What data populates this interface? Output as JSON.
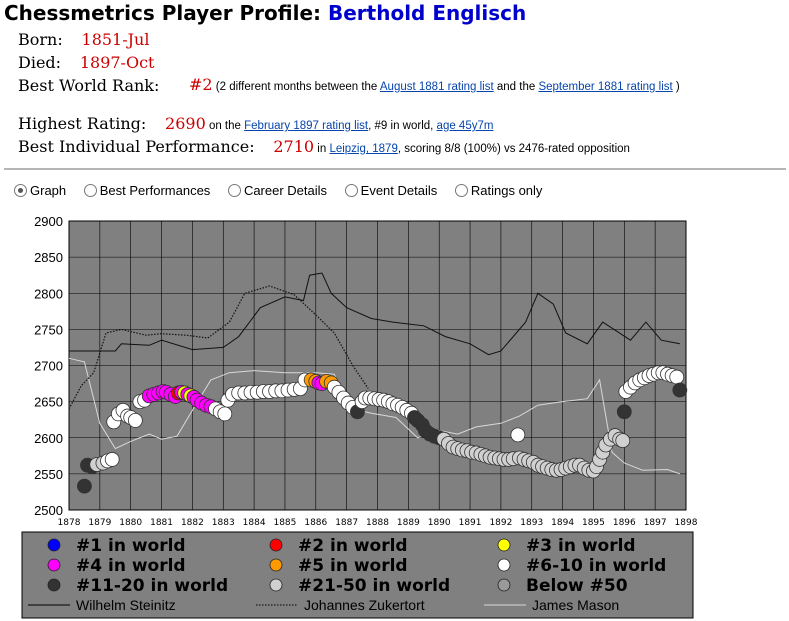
{
  "header": {
    "title_prefix": "Chessmetrics Player Profile: ",
    "player_name": "Berthold Englisch"
  },
  "info": {
    "born_label": "Born:",
    "born_value": "1851-Jul",
    "died_label": "Died:",
    "died_value": "1897-Oct",
    "rank_label": "Best World Rank:",
    "rank_value": "#2",
    "rank_text_1": "(2 different months between the ",
    "rank_link_1": "August 1881 rating list",
    "rank_text_2": " and the ",
    "rank_link_2": "September 1881 rating list",
    "rank_text_3": " )",
    "rating_label": "Highest Rating:",
    "rating_value": "2690",
    "rating_text_1": " on the ",
    "rating_link": "February 1897 rating list",
    "rating_text_2": ", #9 in world, ",
    "rating_age_link": "age 45y7m",
    "perf_label": "Best Individual Performance:",
    "perf_value": "2710",
    "perf_text_1": " in ",
    "perf_link": "Leipzig, 1879",
    "perf_text_2": ", scoring 8/8 (100%) vs 2476-rated opposition"
  },
  "tabs": [
    {
      "label": "Graph",
      "selected": true
    },
    {
      "label": "Best Performances",
      "selected": false
    },
    {
      "label": "Career Details",
      "selected": false
    },
    {
      "label": "Event Details",
      "selected": false
    },
    {
      "label": "Ratings only",
      "selected": false
    }
  ],
  "chart_data": {
    "type": "scatter",
    "ylim": [
      2500,
      2900
    ],
    "yticks": [
      2500,
      2550,
      2600,
      2650,
      2700,
      2750,
      2800,
      2850,
      2900
    ],
    "xlim": [
      1878,
      1898
    ],
    "xticks": [
      "1878",
      "1879",
      "1880",
      "1881",
      "1882",
      "1883",
      "1884",
      "1885",
      "1886",
      "1887",
      "1888",
      "1889",
      "1890",
      "1891",
      "1892",
      "1893",
      "1894",
      "1895",
      "1896",
      "1897",
      "1898"
    ],
    "grid": true,
    "legend_placement": "bottom",
    "legend": [
      {
        "label": "#1 in world",
        "color": "#0000ff",
        "kind": "dot"
      },
      {
        "label": "#2 in world",
        "color": "#ff0000",
        "kind": "dot"
      },
      {
        "label": "#3 in world",
        "color": "#ffff00",
        "kind": "dot"
      },
      {
        "label": "#4 in world",
        "color": "#ff00ff",
        "kind": "dot"
      },
      {
        "label": "#5 in world",
        "color": "#ff9900",
        "kind": "dot"
      },
      {
        "label": "#6-10 in world",
        "color": "#ffffff",
        "kind": "dot"
      },
      {
        "label": "#11-20 in world",
        "color": "#333333",
        "kind": "dot"
      },
      {
        "label": "#21-50 in world",
        "color": "#d0d0d0",
        "kind": "dot"
      },
      {
        "label": "Below #50",
        "color": "#9a9a9a",
        "kind": "dot"
      },
      {
        "label": "Wilhelm Steinitz",
        "color": "#000000",
        "kind": "solid"
      },
      {
        "label": "Johannes Zukertort",
        "color": "#000000",
        "kind": "dotted"
      },
      {
        "label": "James Mason",
        "color": "#d8d8d8",
        "kind": "solid"
      }
    ],
    "category_colors": {
      "r1": "#0000ff",
      "r2": "#ff0000",
      "r3": "#ffff00",
      "r4": "#ff00ff",
      "r5": "#ff9900",
      "r6": "#ffffff",
      "r11": "#333333",
      "r21": "#d0d0d0",
      "r50": "#9a9a9a"
    },
    "englisch_points": [
      [
        "1878.5",
        2533,
        "r11"
      ],
      [
        "1878.6",
        2562,
        "r11"
      ],
      [
        "1878.75",
        2560,
        "r11"
      ],
      [
        "1878.9",
        2563,
        "r21"
      ],
      [
        "1879.1",
        2565,
        "r21"
      ],
      [
        "1879.25",
        2568,
        "r6"
      ],
      [
        "1879.4",
        2570,
        "r6"
      ],
      [
        "1879.45",
        2622,
        "r6"
      ],
      [
        "1879.6",
        2633,
        "r6"
      ],
      [
        "1879.75",
        2638,
        "r6"
      ],
      [
        "1879.9",
        2630,
        "r6"
      ],
      [
        "1880.0",
        2628,
        "r6"
      ],
      [
        "1880.15",
        2624,
        "r6"
      ],
      [
        "1880.3",
        2650,
        "r6"
      ],
      [
        "1880.45",
        2652,
        "r6"
      ],
      [
        "1880.6",
        2658,
        "r4"
      ],
      [
        "1880.75",
        2660,
        "r4"
      ],
      [
        "1880.9",
        2662,
        "r4"
      ],
      [
        "1881.05",
        2664,
        "r4"
      ],
      [
        "1881.15",
        2663,
        "r4"
      ],
      [
        "1881.3",
        2660,
        "r4"
      ],
      [
        "1881.45",
        2657,
        "r4"
      ],
      [
        "1881.55",
        2662,
        "r2"
      ],
      [
        "1881.65",
        2663,
        "r4"
      ],
      [
        "1881.75",
        2662,
        "r3"
      ],
      [
        "1881.85",
        2660,
        "r4"
      ],
      [
        "1881.95",
        2658,
        "r3"
      ],
      [
        "1882.05",
        2656,
        "r4"
      ],
      [
        "1882.15",
        2652,
        "r4"
      ],
      [
        "1882.3",
        2648,
        "r4"
      ],
      [
        "1882.45",
        2645,
        "r4"
      ],
      [
        "1882.6",
        2643,
        "r4"
      ],
      [
        "1882.75",
        2640,
        "r6"
      ],
      [
        "1882.9",
        2636,
        "r6"
      ],
      [
        "1883.05",
        2633,
        "r6"
      ],
      [
        "1883.15",
        2652,
        "r6"
      ],
      [
        "1883.3",
        2660,
        "r6"
      ],
      [
        "1883.5",
        2662,
        "r6"
      ],
      [
        "1883.7",
        2662,
        "r6"
      ],
      [
        "1883.9",
        2663,
        "r6"
      ],
      [
        "1884.1",
        2663,
        "r6"
      ],
      [
        "1884.3",
        2664,
        "r6"
      ],
      [
        "1884.5",
        2664,
        "r6"
      ],
      [
        "1884.7",
        2665,
        "r6"
      ],
      [
        "1884.9",
        2665,
        "r6"
      ],
      [
        "1885.1",
        2666,
        "r6"
      ],
      [
        "1885.3",
        2667,
        "r6"
      ],
      [
        "1885.5",
        2668,
        "r6"
      ],
      [
        "1885.65",
        2680,
        "r6"
      ],
      [
        "1885.85",
        2680,
        "r5"
      ],
      [
        "1886.0",
        2678,
        "r5"
      ],
      [
        "1886.1",
        2676,
        "r4"
      ],
      [
        "1886.2",
        2675,
        "r4"
      ],
      [
        "1886.35",
        2678,
        "r5"
      ],
      [
        "1886.5",
        2676,
        "r5"
      ],
      [
        "1886.6",
        2670,
        "r6"
      ],
      [
        "1886.75",
        2663,
        "r6"
      ],
      [
        "1886.9",
        2655,
        "r6"
      ],
      [
        "1887.05",
        2648,
        "r6"
      ],
      [
        "1887.2",
        2642,
        "r6"
      ],
      [
        "1887.35",
        2636,
        "r11"
      ],
      [
        "1887.5",
        2650,
        "r6"
      ],
      [
        "1887.6",
        2655,
        "r6"
      ],
      [
        "1887.75",
        2655,
        "r6"
      ],
      [
        "1887.9",
        2654,
        "r6"
      ],
      [
        "1888.05",
        2653,
        "r6"
      ],
      [
        "1888.2",
        2652,
        "r6"
      ],
      [
        "1888.35",
        2650,
        "r6"
      ],
      [
        "1888.5",
        2647,
        "r6"
      ],
      [
        "1888.65",
        2645,
        "r6"
      ],
      [
        "1888.8",
        2642,
        "r6"
      ],
      [
        "1888.95",
        2638,
        "r6"
      ],
      [
        "1889.1",
        2634,
        "r6"
      ],
      [
        "1889.2",
        2628,
        "r11"
      ],
      [
        "1889.3",
        2624,
        "r11"
      ],
      [
        "1889.45",
        2618,
        "r11"
      ],
      [
        "1889.55",
        2610,
        "r11"
      ],
      [
        "1889.7",
        2605,
        "r11"
      ],
      [
        "1889.85",
        2602,
        "r11"
      ],
      [
        "1890.0",
        2600,
        "r11"
      ],
      [
        "1890.15",
        2598,
        "r21"
      ],
      [
        "1890.3",
        2592,
        "r21"
      ],
      [
        "1890.45",
        2587,
        "r21"
      ],
      [
        "1890.6",
        2585,
        "r21"
      ],
      [
        "1890.75",
        2583,
        "r21"
      ],
      [
        "1890.9",
        2582,
        "r21"
      ],
      [
        "1891.05",
        2580,
        "r21"
      ],
      [
        "1891.2",
        2579,
        "r21"
      ],
      [
        "1891.35",
        2577,
        "r21"
      ],
      [
        "1891.5",
        2575,
        "r21"
      ],
      [
        "1891.65",
        2573,
        "r21"
      ],
      [
        "1891.8",
        2572,
        "r21"
      ],
      [
        "1891.95",
        2571,
        "r21"
      ],
      [
        "1892.1",
        2570,
        "r21"
      ],
      [
        "1892.25",
        2570,
        "r21"
      ],
      [
        "1892.4",
        2571,
        "r21"
      ],
      [
        "1892.55",
        2604,
        "r6"
      ],
      [
        "1892.6",
        2572,
        "r21"
      ],
      [
        "1892.75",
        2570,
        "r21"
      ],
      [
        "1892.9",
        2568,
        "r21"
      ],
      [
        "1893.05",
        2566,
        "r21"
      ],
      [
        "1893.2",
        2562,
        "r21"
      ],
      [
        "1893.35",
        2560,
        "r21"
      ],
      [
        "1893.5",
        2558,
        "r21"
      ],
      [
        "1893.65",
        2556,
        "r21"
      ],
      [
        "1893.8",
        2555,
        "r21"
      ],
      [
        "1893.95",
        2556,
        "r21"
      ],
      [
        "1894.1",
        2558,
        "r21"
      ],
      [
        "1894.25",
        2560,
        "r21"
      ],
      [
        "1894.4",
        2562,
        "r21"
      ],
      [
        "1894.55",
        2562,
        "r21"
      ],
      [
        "1894.7",
        2558,
        "r21"
      ],
      [
        "1894.85",
        2555,
        "r21"
      ],
      [
        "1895.0",
        2554,
        "r21"
      ],
      [
        "1895.1",
        2560,
        "r21"
      ],
      [
        "1895.2",
        2570,
        "r21"
      ],
      [
        "1895.3",
        2580,
        "r21"
      ],
      [
        "1895.4",
        2590,
        "r21"
      ],
      [
        "1895.55",
        2598,
        "r21"
      ],
      [
        "1895.7",
        2603,
        "r21"
      ],
      [
        "1895.85",
        2598,
        "r21"
      ],
      [
        "1895.95",
        2596,
        "r21"
      ],
      [
        "1896.0",
        2636,
        "r11"
      ],
      [
        "1896.05",
        2664,
        "r6"
      ],
      [
        "1896.2",
        2670,
        "r6"
      ],
      [
        "1896.35",
        2676,
        "r6"
      ],
      [
        "1896.5",
        2680,
        "r6"
      ],
      [
        "1896.65",
        2683,
        "r6"
      ],
      [
        "1896.8",
        2686,
        "r6"
      ],
      [
        "1896.95",
        2688,
        "r6"
      ],
      [
        "1897.1",
        2690,
        "r6"
      ],
      [
        "1897.25",
        2690,
        "r6"
      ],
      [
        "1897.4",
        2688,
        "r6"
      ],
      [
        "1897.55",
        2686,
        "r6"
      ],
      [
        "1897.7",
        2684,
        "r6"
      ],
      [
        "1897.8",
        2666,
        "r11"
      ]
    ],
    "steinitz_line": [
      [
        "1878.0",
        2720
      ],
      [
        "1879.5",
        2720
      ],
      [
        "1879.7",
        2730
      ],
      [
        "1880.6",
        2728
      ],
      [
        "1881.0",
        2735
      ],
      [
        "1882.0",
        2722
      ],
      [
        "1883.0",
        2725
      ],
      [
        "1883.5",
        2740
      ],
      [
        "1884.2",
        2780
      ],
      [
        "1885.0",
        2795
      ],
      [
        "1885.6",
        2790
      ],
      [
        "1885.8",
        2825
      ],
      [
        "1886.2",
        2828
      ],
      [
        "1886.5",
        2800
      ],
      [
        "1887.0",
        2780
      ],
      [
        "1887.8",
        2765
      ],
      [
        "1888.5",
        2760
      ],
      [
        "1889.5",
        2755
      ],
      [
        "1890.2",
        2740
      ],
      [
        "1891.0",
        2730
      ],
      [
        "1891.6",
        2715
      ],
      [
        "1892.0",
        2720
      ],
      [
        "1892.8",
        2760
      ],
      [
        "1893.2",
        2800
      ],
      [
        "1893.7",
        2785
      ],
      [
        "1894.1",
        2745
      ],
      [
        "1894.8",
        2730
      ],
      [
        "1895.3",
        2760
      ],
      [
        "1896.2",
        2735
      ],
      [
        "1896.7",
        2760
      ],
      [
        "1897.2",
        2735
      ],
      [
        "1897.8",
        2730
      ]
    ],
    "zukertort_line": [
      [
        "1878.0",
        2640
      ],
      [
        "1878.4",
        2672
      ],
      [
        "1878.8",
        2690
      ],
      [
        "1879.2",
        2745
      ],
      [
        "1879.7",
        2750
      ],
      [
        "1880.5",
        2742
      ],
      [
        "1881.0",
        2744
      ],
      [
        "1881.8",
        2742
      ],
      [
        "1882.5",
        2738
      ],
      [
        "1883.2",
        2760
      ],
      [
        "1883.7",
        2800
      ],
      [
        "1884.5",
        2810
      ],
      [
        "1885.3",
        2798
      ],
      [
        "1886.0",
        2770
      ],
      [
        "1886.6",
        2745
      ],
      [
        "1887.2",
        2700
      ],
      [
        "1887.7",
        2668
      ]
    ],
    "mason_line": [
      [
        "1878.0",
        2710
      ],
      [
        "1878.5",
        2705
      ],
      [
        "1879.0",
        2620
      ],
      [
        "1879.5",
        2585
      ],
      [
        "1880.0",
        2595
      ],
      [
        "1880.6",
        2605
      ],
      [
        "1881.0",
        2598
      ],
      [
        "1881.5",
        2602
      ],
      [
        "1882.0",
        2638
      ],
      [
        "1882.6",
        2680
      ],
      [
        "1883.2",
        2690
      ],
      [
        "1884.0",
        2693
      ],
      [
        "1885.0",
        2690
      ],
      [
        "1886.0",
        2690
      ],
      [
        "1886.6",
        2688
      ],
      [
        "1887.0",
        2642
      ],
      [
        "1887.8",
        2634
      ],
      [
        "1888.6",
        2628
      ],
      [
        "1889.3",
        2600
      ],
      [
        "1890.0",
        2610
      ],
      [
        "1890.6",
        2605
      ],
      [
        "1891.2",
        2615
      ],
      [
        "1892.0",
        2620
      ],
      [
        "1892.6",
        2630
      ],
      [
        "1893.2",
        2645
      ],
      [
        "1894.0",
        2650
      ],
      [
        "1894.8",
        2654
      ],
      [
        "1895.2",
        2680
      ],
      [
        "1895.6",
        2580
      ],
      [
        "1896.0",
        2565
      ],
      [
        "1896.6",
        2555
      ],
      [
        "1897.4",
        2556
      ],
      [
        "1897.8",
        2550
      ]
    ]
  }
}
